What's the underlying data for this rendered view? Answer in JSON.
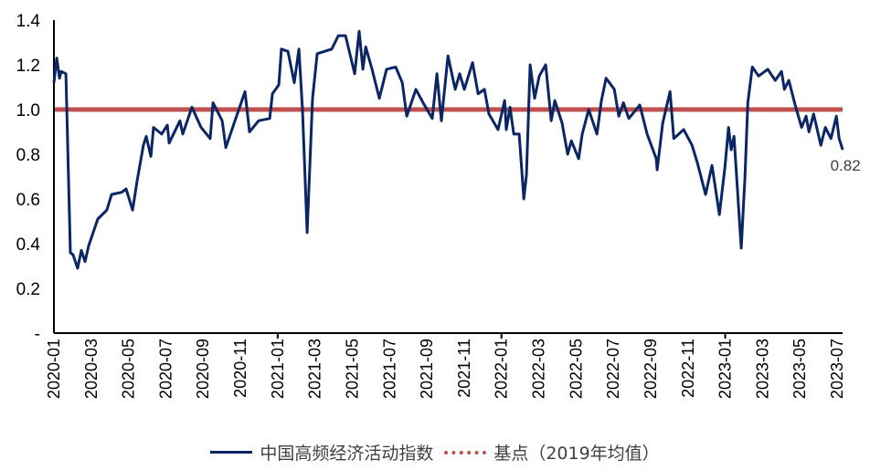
{
  "chart_data": {
    "type": "line",
    "title": "",
    "xlabel": "",
    "ylabel": "",
    "x_unit": "months since 2020-01",
    "x_tick_labels": [
      "2020-01",
      "2020-03",
      "2020-05",
      "2020-07",
      "2020-09",
      "2020-11",
      "2021-01",
      "2021-03",
      "2021-05",
      "2021-07",
      "2021-09",
      "2021-11",
      "2022-01",
      "2022-03",
      "2022-05",
      "2022-07",
      "2022-09",
      "2022-11",
      "2023-01",
      "2023-03",
      "2023-05",
      "2023-07"
    ],
    "y_tick_labels": [
      "-",
      "0.2",
      "0.4",
      "0.6",
      "0.8",
      "1.0",
      "1.2",
      "1.4"
    ],
    "ylim": [
      0,
      1.4
    ],
    "xlim": [
      0,
      42.3
    ],
    "legend_position": "bottom",
    "series": [
      {
        "name": "中国高频经济活动指数",
        "color": "#0b2664",
        "style": "solid",
        "points": [
          [
            0,
            1.12
          ],
          [
            0.15,
            1.23
          ],
          [
            0.3,
            1.14
          ],
          [
            0.39,
            1.17
          ],
          [
            0.64,
            1.16
          ],
          [
            0.69,
            1.0
          ],
          [
            0.88,
            0.36
          ],
          [
            1.03,
            0.35
          ],
          [
            1.27,
            0.29
          ],
          [
            1.47,
            0.37
          ],
          [
            1.67,
            0.32
          ],
          [
            1.86,
            0.39
          ],
          [
            2.35,
            0.51
          ],
          [
            2.84,
            0.55
          ],
          [
            3.09,
            0.62
          ],
          [
            3.63,
            0.63
          ],
          [
            3.87,
            0.645
          ],
          [
            4.22,
            0.55
          ],
          [
            4.46,
            0.68
          ],
          [
            4.8,
            0.84
          ],
          [
            4.95,
            0.88
          ],
          [
            5.2,
            0.79
          ],
          [
            5.34,
            0.92
          ],
          [
            5.78,
            0.89
          ],
          [
            6.08,
            0.93
          ],
          [
            6.18,
            0.85
          ],
          [
            6.76,
            0.95
          ],
          [
            6.91,
            0.89
          ],
          [
            7.4,
            1.01
          ],
          [
            7.89,
            0.92
          ],
          [
            8.38,
            0.87
          ],
          [
            8.53,
            1.03
          ],
          [
            9.02,
            0.95
          ],
          [
            9.22,
            0.83
          ],
          [
            9.71,
            0.95
          ],
          [
            10.25,
            1.08
          ],
          [
            10.49,
            0.9
          ],
          [
            10.98,
            0.95
          ],
          [
            11.57,
            0.96
          ],
          [
            11.72,
            1.07
          ],
          [
            12.06,
            1.11
          ],
          [
            12.2,
            1.27
          ],
          [
            12.55,
            1.26
          ],
          [
            12.89,
            1.12
          ],
          [
            13.14,
            1.27
          ],
          [
            13.33,
            1.0
          ],
          [
            13.58,
            0.45
          ],
          [
            13.87,
            1.05
          ],
          [
            14.12,
            1.25
          ],
          [
            14.9,
            1.27
          ],
          [
            15.25,
            1.33
          ],
          [
            15.64,
            1.33
          ],
          [
            16.13,
            1.16
          ],
          [
            16.37,
            1.35
          ],
          [
            16.57,
            1.18
          ],
          [
            16.72,
            1.28
          ],
          [
            17.06,
            1.18
          ],
          [
            17.45,
            1.05
          ],
          [
            17.84,
            1.18
          ],
          [
            18.33,
            1.19
          ],
          [
            18.68,
            1.12
          ],
          [
            18.92,
            0.97
          ],
          [
            19.41,
            1.09
          ],
          [
            19.8,
            1.03
          ],
          [
            20.29,
            0.96
          ],
          [
            20.54,
            1.16
          ],
          [
            20.78,
            0.95
          ],
          [
            21.13,
            1.24
          ],
          [
            21.52,
            1.09
          ],
          [
            21.76,
            1.16
          ],
          [
            22.01,
            1.09
          ],
          [
            22.45,
            1.21
          ],
          [
            22.75,
            1.07
          ],
          [
            23.09,
            1.09
          ],
          [
            23.33,
            0.98
          ],
          [
            23.82,
            0.91
          ],
          [
            24.17,
            1.04
          ],
          [
            24.26,
            0.91
          ],
          [
            24.46,
            1.01
          ],
          [
            24.66,
            0.89
          ],
          [
            24.95,
            0.89
          ],
          [
            25.2,
            0.6
          ],
          [
            25.34,
            0.71
          ],
          [
            25.54,
            1.2
          ],
          [
            25.78,
            1.05
          ],
          [
            26.03,
            1.15
          ],
          [
            26.37,
            1.2
          ],
          [
            26.67,
            0.95
          ],
          [
            26.86,
            1.04
          ],
          [
            27.25,
            0.94
          ],
          [
            27.55,
            0.8
          ],
          [
            27.75,
            0.86
          ],
          [
            28.14,
            0.78
          ],
          [
            28.33,
            0.89
          ],
          [
            28.68,
            1.0
          ],
          [
            29.12,
            0.89
          ],
          [
            29.36,
            1.04
          ],
          [
            29.61,
            1.14
          ],
          [
            30.05,
            1.09
          ],
          [
            30.29,
            0.97
          ],
          [
            30.54,
            1.03
          ],
          [
            30.83,
            0.96
          ],
          [
            31.42,
            1.02
          ],
          [
            31.81,
            0.89
          ],
          [
            32.3,
            0.78
          ],
          [
            32.35,
            0.73
          ],
          [
            32.65,
            0.94
          ],
          [
            33.04,
            1.08
          ],
          [
            33.24,
            0.87
          ],
          [
            33.77,
            0.91
          ],
          [
            34.22,
            0.84
          ],
          [
            34.51,
            0.76
          ],
          [
            34.95,
            0.62
          ],
          [
            35.29,
            0.75
          ],
          [
            35.69,
            0.53
          ],
          [
            35.98,
            0.74
          ],
          [
            36.18,
            0.92
          ],
          [
            36.32,
            0.82
          ],
          [
            36.47,
            0.88
          ],
          [
            36.86,
            0.38
          ],
          [
            37.06,
            0.7
          ],
          [
            37.21,
            1.03
          ],
          [
            37.45,
            1.19
          ],
          [
            37.79,
            1.15
          ],
          [
            38.28,
            1.18
          ],
          [
            38.68,
            1.13
          ],
          [
            39.02,
            1.17
          ],
          [
            39.17,
            1.09
          ],
          [
            39.41,
            1.13
          ],
          [
            39.75,
            1.02
          ],
          [
            40.1,
            0.92
          ],
          [
            40.34,
            0.97
          ],
          [
            40.49,
            0.9
          ],
          [
            40.74,
            0.98
          ],
          [
            41.13,
            0.84
          ],
          [
            41.37,
            0.92
          ],
          [
            41.67,
            0.87
          ],
          [
            41.96,
            0.97
          ],
          [
            42.11,
            0.87
          ],
          [
            42.3,
            0.82
          ]
        ]
      },
      {
        "name": "基点（2019年均值）",
        "color": "#c0504d",
        "style": "dotted",
        "constant": 1.0
      }
    ],
    "annotations": [
      {
        "text": "0.82",
        "target": "last point"
      }
    ]
  }
}
